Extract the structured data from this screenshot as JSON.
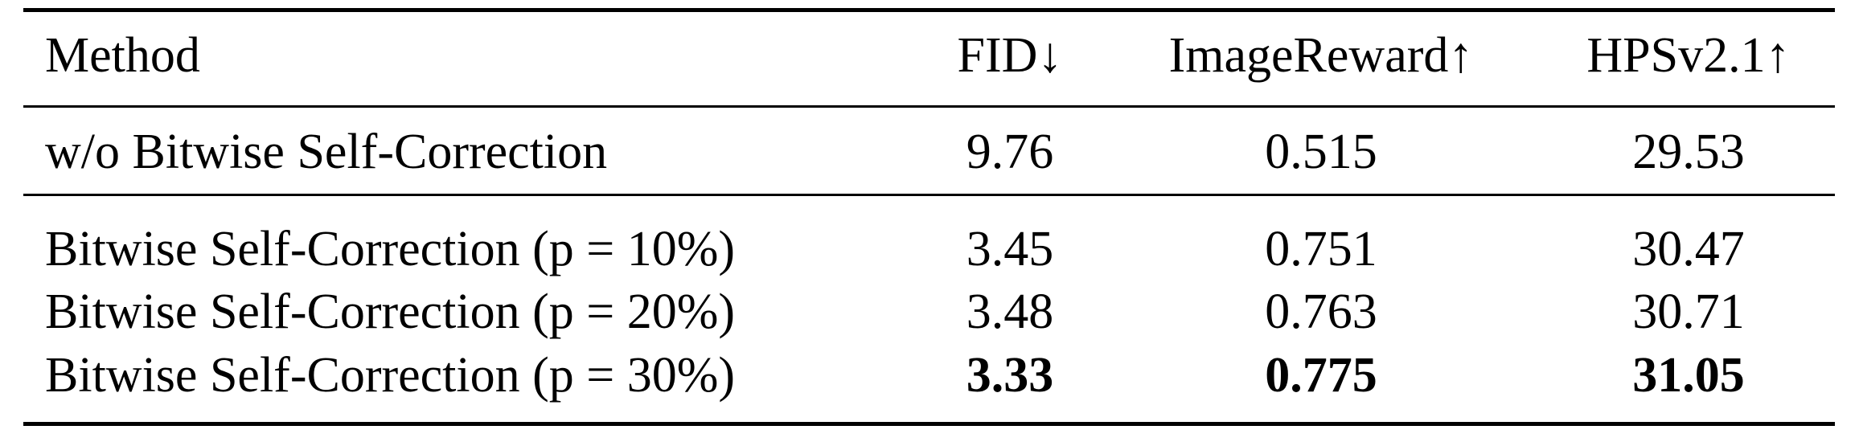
{
  "table": {
    "header": [
      "Method",
      "FID↓",
      "ImageReward↑",
      "HPSv2.1↑"
    ],
    "rows": [
      [
        "w/o Bitwise Self-Correction",
        "9.76",
        "0.515",
        "29.53"
      ],
      [
        "Bitwise Self-Correction (p = 10%)",
        "3.45",
        "0.751",
        "30.47"
      ],
      [
        "Bitwise Self-Correction (p = 20%)",
        "3.48",
        "0.763",
        "30.71"
      ],
      [
        "Bitwise Self-Correction (p = 30%)",
        "3.33",
        "0.775",
        "31.05"
      ]
    ]
  }
}
